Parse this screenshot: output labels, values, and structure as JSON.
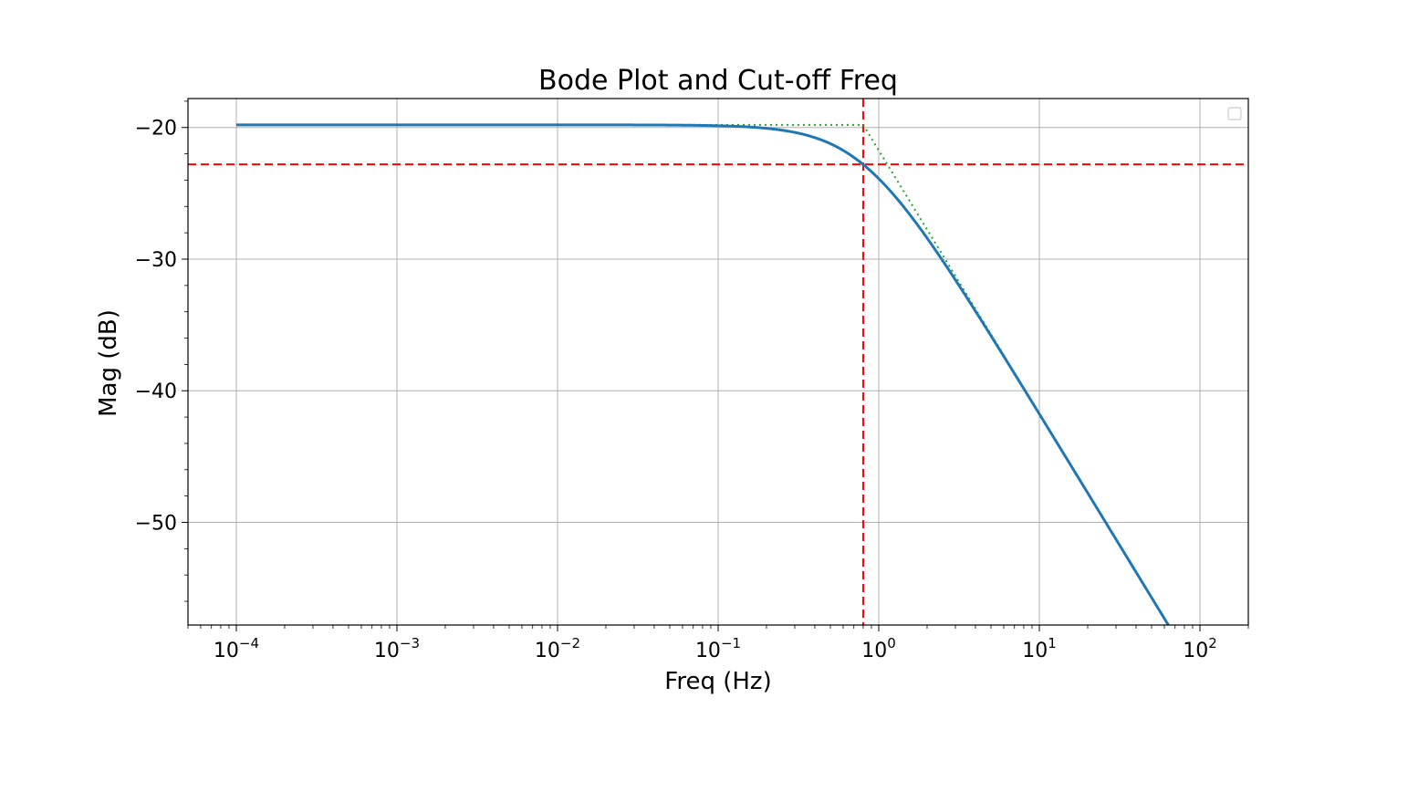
{
  "chart_data": {
    "type": "line",
    "title": "Bode Plot and Cut-off Freq",
    "xlabel": "Freq (Hz)",
    "ylabel": "Mag (dB)",
    "x_scale": "log",
    "xlim": [
      5e-05,
      200
    ],
    "ylim": [
      -57.8,
      -17.8
    ],
    "grid": true,
    "legend": "top-right (empty)",
    "x_ticks": [
      {
        "value": 0.0001,
        "base": "10",
        "exp": "−4"
      },
      {
        "value": 0.001,
        "base": "10",
        "exp": "−3"
      },
      {
        "value": 0.01,
        "base": "10",
        "exp": "−2"
      },
      {
        "value": 0.1,
        "base": "10",
        "exp": "−1"
      },
      {
        "value": 1,
        "base": "10",
        "exp": "0"
      },
      {
        "value": 10,
        "base": "10",
        "exp": "1"
      },
      {
        "value": 100,
        "base": "10",
        "exp": "2"
      }
    ],
    "y_ticks": [
      {
        "value": -20,
        "label": "−20"
      },
      {
        "value": -30,
        "label": "−30"
      },
      {
        "value": -40,
        "label": "−40"
      },
      {
        "value": -50,
        "label": "−50"
      }
    ],
    "series": [
      {
        "style": "solid",
        "color": "#1f77b4",
        "x": [
          0.0001,
          0.001,
          0.01,
          0.05,
          0.1,
          0.2,
          0.3,
          0.5,
          0.8,
          1,
          1.5,
          2,
          3,
          5,
          10,
          20,
          50,
          100
        ],
        "y": [
          -19.8,
          -19.8,
          -19.8,
          -19.82,
          -19.87,
          -20.05,
          -20.32,
          -21.09,
          -22.8,
          -23.73,
          -25.98,
          -27.9,
          -31.1,
          -35.3,
          -41.2,
          -47.2,
          -55.1,
          -61.1
        ]
      },
      {
        "style": "dotted",
        "color": "#2ca02c",
        "x": [
          0.0015,
          0.8,
          100
        ],
        "y": [
          -19.8,
          -19.8,
          -61.74
        ]
      }
    ],
    "reference_lines": [
      {
        "orientation": "vertical",
        "x": 0.8,
        "color": "#ff0000",
        "style": "dashed"
      },
      {
        "orientation": "horizontal",
        "y": -22.8,
        "color": "#ff0000",
        "style": "dashed"
      }
    ],
    "y_display_range": [
      -56,
      -17.8
    ]
  }
}
